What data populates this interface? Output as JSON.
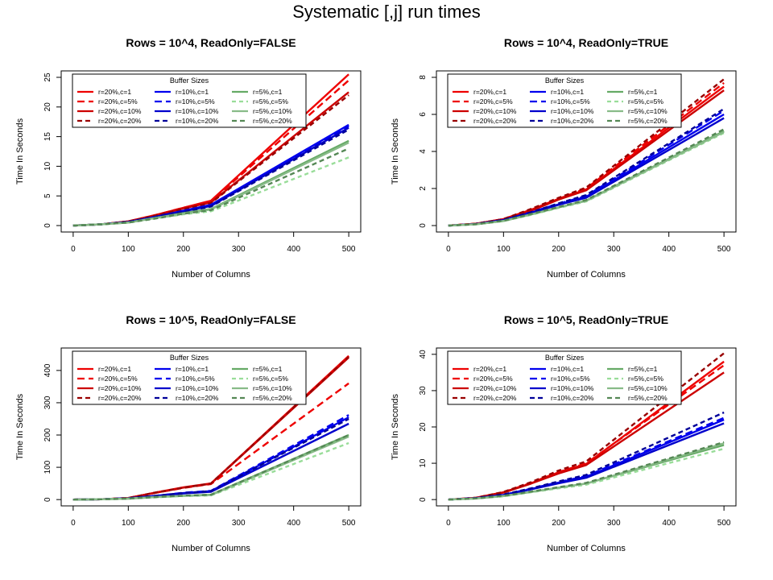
{
  "page_title": "Systematic [,j] run times",
  "colors": {
    "r20_c1": "#ee0000",
    "r20_c5": "#ee0000",
    "r20_c10": "#cc0000",
    "r20_c20": "#990000",
    "r10_c1": "#0000ee",
    "r10_c5": "#0000ee",
    "r10_c10": "#0000cc",
    "r10_c20": "#000099",
    "r5_c1": "#66aa66",
    "r5_c5": "#99dd99",
    "r5_c10": "#88bb88",
    "r5_c20": "#558855"
  },
  "chart_data": [
    {
      "type": "line",
      "title": "Rows = 10^4, ReadOnly=FALSE",
      "xlabel": "Number of Columns",
      "ylabel": "Time In Seconds",
      "xlim": [
        0,
        500
      ],
      "ylim": [
        0,
        25
      ],
      "xticks": [
        "0",
        "100",
        "200",
        "300",
        "400",
        "500"
      ],
      "yticks": [
        "0",
        "5",
        "10",
        "15",
        "20",
        "25"
      ],
      "legend_title": "Buffer Sizes",
      "legend_position": "top-left",
      "x": [
        0,
        50,
        100,
        150,
        200,
        250,
        500
      ],
      "series": [
        {
          "name": "r=20%,c=1",
          "values": [
            0,
            0.2,
            0.7,
            1.8,
            3.0,
            4.2,
            25.5
          ]
        },
        {
          "name": "r=20%,c=5%",
          "values": [
            0,
            0.2,
            0.7,
            1.8,
            3.0,
            4.1,
            24.5
          ]
        },
        {
          "name": "r=20%,c=10%",
          "values": [
            0,
            0.2,
            0.7,
            1.7,
            2.9,
            3.9,
            22.5
          ]
        },
        {
          "name": "r=20%,c=20%",
          "values": [
            0,
            0.2,
            0.7,
            1.7,
            2.8,
            3.8,
            22.0
          ]
        },
        {
          "name": "r=10%,c=1",
          "values": [
            0,
            0.2,
            0.6,
            1.5,
            2.5,
            3.5,
            17.0
          ]
        },
        {
          "name": "r=10%,c=5%",
          "values": [
            0,
            0.2,
            0.6,
            1.5,
            2.5,
            3.4,
            16.8
          ]
        },
        {
          "name": "r=10%,c=10%",
          "values": [
            0,
            0.2,
            0.6,
            1.5,
            2.4,
            3.3,
            16.5
          ]
        },
        {
          "name": "r=10%,c=20%",
          "values": [
            0,
            0.2,
            0.6,
            1.4,
            2.3,
            3.2,
            16.2
          ]
        },
        {
          "name": "r=5%,c=1",
          "values": [
            0,
            0.2,
            0.5,
            1.3,
            2.1,
            2.8,
            14.3
          ]
        },
        {
          "name": "r=5%,c=5%",
          "values": [
            0,
            0.2,
            0.5,
            1.2,
            1.9,
            2.4,
            11.5
          ]
        },
        {
          "name": "r=5%,c=10%",
          "values": [
            0,
            0.2,
            0.5,
            1.3,
            2.0,
            2.7,
            14.0
          ]
        },
        {
          "name": "r=5%,c=20%",
          "values": [
            0,
            0.2,
            0.5,
            1.2,
            2.0,
            2.6,
            13.0
          ]
        }
      ]
    },
    {
      "type": "line",
      "title": "Rows = 10^4, ReadOnly=TRUE",
      "xlabel": "Number of Columns",
      "ylabel": "Time In Seconds",
      "xlim": [
        0,
        500
      ],
      "ylim": [
        0,
        8
      ],
      "xticks": [
        "0",
        "100",
        "200",
        "300",
        "400",
        "500"
      ],
      "yticks": [
        "0",
        "2",
        "4",
        "6",
        "8"
      ],
      "legend_title": "Buffer Sizes",
      "legend_position": "top-left",
      "x": [
        0,
        50,
        100,
        150,
        200,
        250,
        500
      ],
      "series": [
        {
          "name": "r=20%,c=1",
          "values": [
            0,
            0.1,
            0.35,
            0.85,
            1.45,
            1.95,
            7.5
          ]
        },
        {
          "name": "r=20%,c=5%",
          "values": [
            0,
            0.1,
            0.35,
            0.85,
            1.45,
            2.0,
            7.7
          ]
        },
        {
          "name": "r=20%,c=10%",
          "values": [
            0,
            0.1,
            0.33,
            0.8,
            1.4,
            1.9,
            7.3
          ]
        },
        {
          "name": "r=20%,c=20%",
          "values": [
            0,
            0.1,
            0.35,
            0.9,
            1.5,
            2.05,
            7.9
          ]
        },
        {
          "name": "r=10%,c=1",
          "values": [
            0,
            0.08,
            0.3,
            0.7,
            1.15,
            1.55,
            6.0
          ]
        },
        {
          "name": "r=10%,c=5%",
          "values": [
            0,
            0.08,
            0.3,
            0.72,
            1.18,
            1.6,
            6.2
          ]
        },
        {
          "name": "r=10%,c=10%",
          "values": [
            0,
            0.08,
            0.28,
            0.68,
            1.12,
            1.5,
            5.8
          ]
        },
        {
          "name": "r=10%,c=20%",
          "values": [
            0,
            0.08,
            0.3,
            0.72,
            1.2,
            1.65,
            6.3
          ]
        },
        {
          "name": "r=5%,c=1",
          "values": [
            0,
            0.07,
            0.25,
            0.6,
            0.98,
            1.35,
            5.1
          ]
        },
        {
          "name": "r=5%,c=5%",
          "values": [
            0,
            0.07,
            0.24,
            0.58,
            0.95,
            1.3,
            5.0
          ]
        },
        {
          "name": "r=5%,c=10%",
          "values": [
            0,
            0.07,
            0.25,
            0.6,
            0.98,
            1.33,
            5.05
          ]
        },
        {
          "name": "r=5%,c=20%",
          "values": [
            0,
            0.07,
            0.26,
            0.62,
            1.0,
            1.38,
            5.2
          ]
        }
      ]
    },
    {
      "type": "line",
      "title": "Rows = 10^5, ReadOnly=FALSE",
      "xlabel": "Number of Columns",
      "ylabel": "Time In Seconds",
      "xlim": [
        0,
        500
      ],
      "ylim": [
        0,
        450
      ],
      "xticks": [
        "0",
        "100",
        "200",
        "300",
        "400",
        "500"
      ],
      "yticks": [
        "0",
        "100",
        "200",
        "300",
        "400"
      ],
      "legend_title": "Buffer Sizes",
      "legend_position": "top-left",
      "x": [
        0,
        50,
        100,
        150,
        200,
        250,
        500
      ],
      "series": [
        {
          "name": "r=20%,c=1",
          "values": [
            0,
            1,
            5,
            22,
            38,
            50,
            445
          ]
        },
        {
          "name": "r=20%,c=5%",
          "values": [
            0,
            1,
            5,
            21,
            36,
            48,
            360
          ]
        },
        {
          "name": "r=20%,c=10%",
          "values": [
            0,
            1,
            5,
            21,
            37,
            49,
            440
          ]
        },
        {
          "name": "r=20%,c=20%",
          "values": [
            0,
            1,
            5,
            22,
            37,
            50,
            442
          ]
        },
        {
          "name": "r=10%,c=1",
          "values": [
            0,
            1,
            4,
            12,
            20,
            26,
            255
          ]
        },
        {
          "name": "r=10%,c=5%",
          "values": [
            0,
            1,
            4,
            12,
            21,
            27,
            262
          ]
        },
        {
          "name": "r=10%,c=10%",
          "values": [
            0,
            1,
            4,
            11,
            19,
            24,
            235
          ]
        },
        {
          "name": "r=10%,c=20%",
          "values": [
            0,
            1,
            4,
            12,
            20,
            26,
            250
          ]
        },
        {
          "name": "r=5%,c=1",
          "values": [
            0,
            1,
            3,
            8,
            12,
            15,
            200
          ]
        },
        {
          "name": "r=5%,c=5%",
          "values": [
            0,
            1,
            3,
            7,
            11,
            13,
            175
          ]
        },
        {
          "name": "r=5%,c=10%",
          "values": [
            0,
            1,
            3,
            8,
            12,
            14,
            195
          ]
        },
        {
          "name": "r=5%,c=20%",
          "values": [
            0,
            1,
            3,
            8,
            12,
            15,
            200
          ]
        }
      ]
    },
    {
      "type": "line",
      "title": "Rows = 10^5, ReadOnly=TRUE",
      "xlabel": "Number of Columns",
      "ylabel": "Time In Seconds",
      "xlim": [
        0,
        500
      ],
      "ylim": [
        0,
        40
      ],
      "xticks": [
        "0",
        "100",
        "200",
        "300",
        "400",
        "500"
      ],
      "yticks": [
        "0",
        "10",
        "20",
        "30",
        "40"
      ],
      "legend_title": "Buffer Sizes",
      "legend_position": "top-left",
      "x": [
        0,
        50,
        100,
        150,
        200,
        250,
        500
      ],
      "series": [
        {
          "name": "r=20%,c=1",
          "values": [
            0,
            0.5,
            2.0,
            4.5,
            7.5,
            9.8,
            38.0
          ]
        },
        {
          "name": "r=20%,c=5%",
          "values": [
            0,
            0.5,
            2.0,
            4.6,
            7.6,
            10.0,
            37.0
          ]
        },
        {
          "name": "r=20%,c=10%",
          "values": [
            0,
            0.5,
            1.9,
            4.4,
            7.2,
            9.5,
            35.0
          ]
        },
        {
          "name": "r=20%,c=20%",
          "values": [
            0,
            0.5,
            2.1,
            4.8,
            8.0,
            10.5,
            40.3
          ]
        },
        {
          "name": "r=10%,c=1",
          "values": [
            0,
            0.4,
            1.3,
            2.9,
            4.7,
            6.3,
            22.0
          ]
        },
        {
          "name": "r=10%,c=5%",
          "values": [
            0,
            0.4,
            1.3,
            3.0,
            4.8,
            6.5,
            22.5
          ]
        },
        {
          "name": "r=10%,c=10%",
          "values": [
            0,
            0.4,
            1.2,
            2.8,
            4.5,
            6.0,
            21.0
          ]
        },
        {
          "name": "r=10%,c=20%",
          "values": [
            0,
            0.4,
            1.4,
            3.1,
            5.0,
            6.8,
            24.0
          ]
        },
        {
          "name": "r=5%,c=1",
          "values": [
            0,
            0.3,
            1.0,
            2.1,
            3.3,
            4.4,
            15.0
          ]
        },
        {
          "name": "r=5%,c=5%",
          "values": [
            0,
            0.3,
            0.9,
            2.0,
            3.1,
            4.1,
            14.0
          ]
        },
        {
          "name": "r=5%,c=10%",
          "values": [
            0,
            0.3,
            1.0,
            2.1,
            3.3,
            4.4,
            15.5
          ]
        },
        {
          "name": "r=5%,c=20%",
          "values": [
            0,
            0.3,
            1.0,
            2.2,
            3.4,
            4.6,
            15.8
          ]
        }
      ]
    }
  ]
}
